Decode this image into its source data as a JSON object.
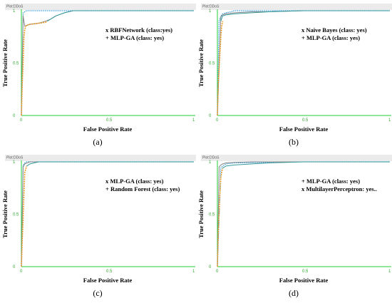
{
  "colors": {
    "background": "#ffffff",
    "header_band": "#ebebeb",
    "axis_green": "#22cc33",
    "tick_green": "#33aa33",
    "series_dotted": "#3399dd",
    "series_gray": "#888888",
    "series_orange": "#ee9922",
    "series_teal": "#339999"
  },
  "chart_data": [
    {
      "type": "line",
      "caption": "(a)",
      "plot_title": "Plot:DDoS",
      "xlabel": "False Positive Rate",
      "ylabel": "True Positive Rate",
      "xlim": [
        0,
        1
      ],
      "ylim": [
        0,
        1
      ],
      "x_ticks": [
        "0",
        "0.5",
        "1"
      ],
      "y_ticks": [
        "0",
        "0.5",
        "1"
      ],
      "legend": [
        "x RBFNetwork (class:yes)",
        "+ MLP-GA (class: yes)"
      ],
      "legend_position": "top-right",
      "series": [
        {
          "style": "dotted",
          "color": "#3399dd",
          "x": [
            0,
            0.01,
            0.02,
            0.03,
            0.5,
            1
          ],
          "y": [
            0,
            0.98,
            0.99,
            1.0,
            1.0,
            1.0
          ]
        },
        {
          "style": "gray",
          "color": "#888888",
          "x": [
            0,
            0.01,
            0.02,
            0.03,
            0.05,
            0.1,
            0.14,
            0.17,
            0.2,
            0.25,
            0.3,
            0.5,
            1
          ],
          "y": [
            0,
            0.95,
            0.85,
            0.86,
            0.87,
            0.88,
            0.9,
            0.92,
            0.95,
            0.98,
            1.0,
            1.0,
            1.0
          ]
        },
        {
          "style": "orange",
          "color": "#ee9922",
          "x": [
            0,
            0.005,
            0.01,
            0.015,
            0.02,
            0.025,
            0.03,
            0.05,
            0.1,
            0.14,
            0.15
          ],
          "y": [
            0,
            0.3,
            0.5,
            0.75,
            0.82,
            0.85,
            0.86,
            0.87,
            0.88,
            0.89,
            0.9
          ]
        },
        {
          "style": "teal",
          "color": "#339999",
          "x": [
            0.15,
            0.2,
            0.25,
            0.3,
            0.5,
            1
          ],
          "y": [
            0.9,
            0.95,
            0.98,
            1.0,
            1.0,
            1.0
          ]
        }
      ]
    },
    {
      "type": "line",
      "caption": "(b)",
      "plot_title": "Plot:DDoS",
      "xlabel": "False Positive Rate",
      "ylabel": "True Positive Rate",
      "xlim": [
        0,
        1
      ],
      "ylim": [
        0,
        1
      ],
      "x_ticks": [
        "0",
        "0.5",
        "1"
      ],
      "y_ticks": [
        "0",
        "0.5",
        "1"
      ],
      "legend": [
        "x Naive Bayes (class: yes)",
        "+ MLP-GA (class: yes)"
      ],
      "legend_position": "top-right",
      "series": [
        {
          "style": "dotted",
          "color": "#3399dd",
          "x": [
            0,
            0.01,
            0.02,
            0.03,
            0.05,
            0.08,
            0.1,
            0.2,
            0.5,
            1
          ],
          "y": [
            0,
            0.9,
            0.95,
            0.97,
            0.98,
            0.99,
            1.0,
            1.0,
            1.0,
            1.0
          ]
        },
        {
          "style": "gray",
          "color": "#888888",
          "x": [
            0,
            0.02,
            0.03,
            0.05,
            0.1,
            0.15,
            0.2,
            0.3,
            0.5,
            1
          ],
          "y": [
            0,
            0.94,
            0.96,
            0.97,
            0.98,
            0.985,
            0.99,
            0.99,
            1.0,
            1.0
          ]
        },
        {
          "style": "orange",
          "color": "#ee9922",
          "x": [
            0,
            0.005,
            0.01,
            0.015,
            0.02,
            0.025,
            0.03
          ],
          "y": [
            0,
            0.3,
            0.45,
            0.6,
            0.75,
            0.85,
            0.9
          ]
        },
        {
          "style": "teal",
          "color": "#339999",
          "x": [
            0.02,
            0.03,
            0.05,
            0.1,
            0.2,
            0.3,
            0.5,
            1
          ],
          "y": [
            0.9,
            0.95,
            0.96,
            0.97,
            0.98,
            0.99,
            1.0,
            1.0
          ]
        }
      ]
    },
    {
      "type": "line",
      "caption": "(c)",
      "plot_title": "Plot:DDoS",
      "xlabel": "False Positive Rate",
      "ylabel": "True Positive Rate",
      "xlim": [
        0,
        1
      ],
      "ylim": [
        0,
        1
      ],
      "x_ticks": [
        "0",
        "0.5",
        "1"
      ],
      "y_ticks": [
        "0",
        "0.5",
        "1"
      ],
      "legend": [
        "x MLP-GA (class: yes)",
        "+ Random Forest (class: yes)"
      ],
      "legend_position": "top-right",
      "series": [
        {
          "style": "dotted",
          "color": "#3399dd",
          "x": [
            0,
            0.01,
            0.02,
            0.03,
            0.5,
            1
          ],
          "y": [
            0,
            0.97,
            0.99,
            1.0,
            1.0,
            1.0
          ]
        },
        {
          "style": "gray",
          "color": "#888888",
          "x": [
            0,
            0.01,
            0.02,
            0.05,
            0.1,
            0.5,
            1
          ],
          "y": [
            0,
            0.95,
            0.98,
            1.0,
            1.0,
            1.0,
            1.0
          ]
        },
        {
          "style": "orange",
          "color": "#ee9922",
          "x": [
            0,
            0.005,
            0.01,
            0.015,
            0.02,
            0.03
          ],
          "y": [
            0,
            0.25,
            0.45,
            0.7,
            0.9,
            0.96
          ]
        },
        {
          "style": "teal",
          "color": "#339999",
          "x": [
            0.03,
            0.05,
            0.1,
            0.5,
            1
          ],
          "y": [
            0.96,
            0.98,
            1.0,
            1.0,
            1.0
          ]
        }
      ]
    },
    {
      "type": "line",
      "caption": "(d)",
      "plot_title": "Plot:DDoS",
      "xlabel": "False Positive Rate",
      "ylabel": "True Positive Rate",
      "xlim": [
        0,
        1
      ],
      "ylim": [
        0,
        1
      ],
      "x_ticks": [
        "0",
        "0.5",
        "1"
      ],
      "y_ticks": [
        "0",
        "0.5",
        "1"
      ],
      "legend": [
        "+ MLP-GA (class: yes)",
        "x MultilayerPerceptron: yes.."
      ],
      "legend_position": "top-right",
      "series": [
        {
          "style": "dotted",
          "color": "#3399dd",
          "x": [
            0,
            0.02,
            0.03,
            0.05,
            0.1,
            0.5,
            1
          ],
          "y": [
            0,
            0.94,
            0.96,
            0.98,
            0.99,
            1.0,
            1.0
          ]
        },
        {
          "style": "gray",
          "color": "#888888",
          "x": [
            0,
            0.01,
            0.02,
            0.03,
            0.05,
            0.1,
            0.2,
            0.5,
            1
          ],
          "y": [
            0,
            0.95,
            0.97,
            0.98,
            0.99,
            0.995,
            1.0,
            1.0,
            1.0
          ]
        },
        {
          "style": "orange",
          "color": "#ee9922",
          "x": [
            0,
            0.005,
            0.01,
            0.015,
            0.02,
            0.025,
            0.03
          ],
          "y": [
            0,
            0.3,
            0.5,
            0.7,
            0.85,
            0.9,
            0.94
          ]
        },
        {
          "style": "teal",
          "color": "#339999",
          "x": [
            0.03,
            0.05,
            0.1,
            0.2,
            0.3,
            0.5,
            1
          ],
          "y": [
            0.94,
            0.96,
            0.97,
            0.98,
            0.99,
            1.0,
            1.0
          ]
        }
      ]
    }
  ]
}
